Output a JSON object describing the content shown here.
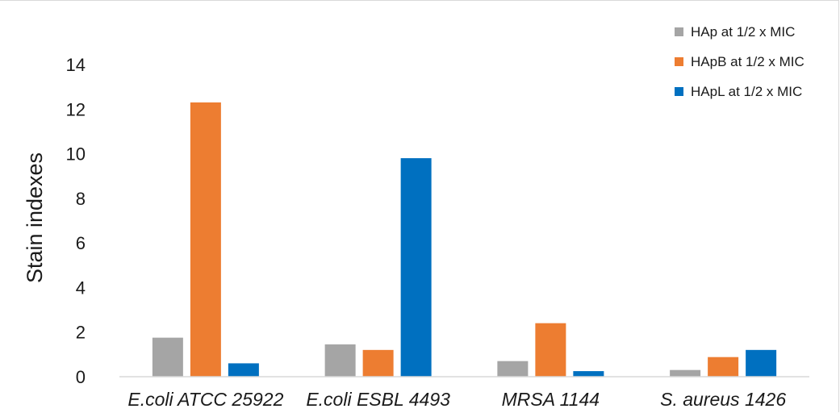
{
  "chart_data": {
    "type": "bar",
    "title": "",
    "xlabel": "",
    "ylabel": "Stain indexes",
    "ylim": [
      0,
      14
    ],
    "yticks": [
      0,
      2,
      4,
      6,
      8,
      10,
      12,
      14
    ],
    "grid": false,
    "legend_position": "top-right",
    "categories": [
      "E.coli ATCC 25922",
      "E.coli ESBL 4493",
      "MRSA 1144",
      "S. aureus 1426"
    ],
    "series": [
      {
        "name": "HAp at 1/2 x MIC",
        "color": "#a5a5a5",
        "values": [
          1.75,
          1.45,
          0.7,
          0.3
        ]
      },
      {
        "name": "HApB at 1/2 x MIC",
        "color": "#ed7d31",
        "values": [
          12.3,
          1.2,
          2.4,
          0.88
        ]
      },
      {
        "name": "HApL at 1/2 x MIC",
        "color": "#0070c0",
        "values": [
          0.6,
          9.8,
          0.25,
          1.2
        ]
      }
    ]
  }
}
